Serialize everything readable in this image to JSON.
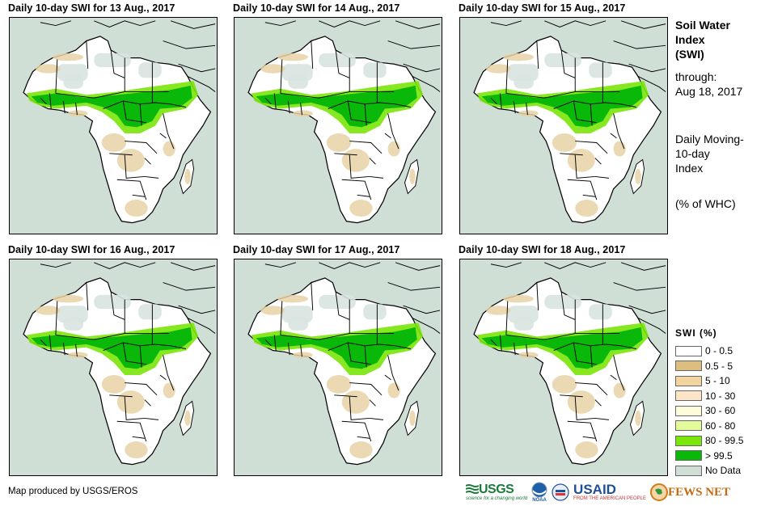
{
  "panels": [
    {
      "title": "Daily 10-day SWI for 13 Aug., 2017"
    },
    {
      "title": "Daily 10-day SWI for 14 Aug., 2017"
    },
    {
      "title": "Daily 10-day SWI for 15 Aug., 2017"
    },
    {
      "title": "Daily 10-day SWI for 16 Aug., 2017"
    },
    {
      "title": "Daily 10-day SWI for 17 Aug., 2017"
    },
    {
      "title": "Daily 10-day SWI for 18 Aug., 2017"
    }
  ],
  "side": {
    "title_lines": [
      "Soil Water",
      "Index",
      "(SWI)"
    ],
    "through_label": "through:",
    "through_date": "Aug 18, 2017",
    "desc_lines": [
      "Daily Moving-",
      "10-day",
      "Index"
    ],
    "unit": "(% of WHC)"
  },
  "legend": {
    "title": "SWI (%)",
    "items": [
      {
        "label": "0 - 0.5",
        "color": "#ffffff"
      },
      {
        "label": "0.5 - 5",
        "color": "#dcbe7e"
      },
      {
        "label": "5 - 10",
        "color": "#f2d49e"
      },
      {
        "label": "10 - 30",
        "color": "#fde6c8"
      },
      {
        "label": "30 - 60",
        "color": "#fdfddc"
      },
      {
        "label": "60 - 80",
        "color": "#e4fb9c"
      },
      {
        "label": "80 - 99.5",
        "color": "#7ae60a"
      },
      {
        "label": "> 99.5",
        "color": "#0ab80a"
      },
      {
        "label": "No Data",
        "color": "#d0dfd6"
      }
    ]
  },
  "colors": {
    "sea": "#d0dfd6",
    "land": "#ffffff",
    "dry": "#e8d2a6",
    "wet": "#0ab80a",
    "moist": "#7ae60a",
    "nodata": "#d8e4e0"
  },
  "credit": "Map produced by USGS/EROS",
  "logos": {
    "usgs": "USGS",
    "usgs_tagline": "science for a changing world",
    "noaa": "NOAA",
    "usaid": "USAID",
    "usaid_tagline": "FROM THE AMERICAN PEOPLE",
    "fewsnet": "FEWS NET"
  }
}
